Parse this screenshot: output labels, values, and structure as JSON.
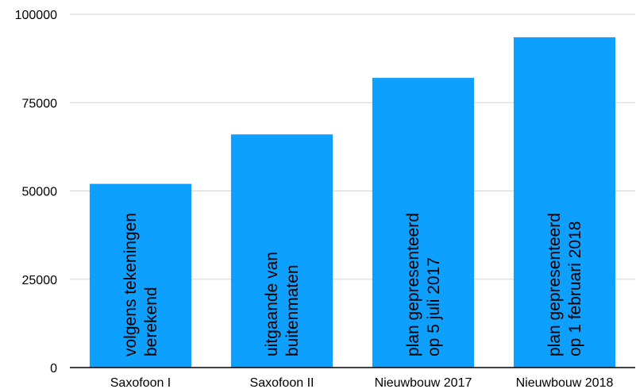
{
  "chart_data": {
    "type": "bar",
    "title": "",
    "xlabel": "",
    "ylabel": "",
    "categories": [
      "Saxofoon I",
      "Saxofoon II",
      "Nieuwbouw 2017",
      "Nieuwbouw 2018"
    ],
    "values": [
      52000,
      66000,
      82000,
      93500
    ],
    "bar_annotations": [
      [
        "volgens tekeningen",
        "berekend"
      ],
      [
        "uitgaande van",
        "buitenmaten"
      ],
      [
        "plan gepresenteerd",
        "op 5 juli 2017"
      ],
      [
        "plan gepresenteerd",
        "op 1 februari 2018"
      ]
    ],
    "ylim": [
      0,
      100000
    ],
    "yticks": [
      "0",
      "25000",
      "50000",
      "75000",
      "100000"
    ],
    "grid": true,
    "legend": "none",
    "bar_color": "#0da0ff"
  }
}
